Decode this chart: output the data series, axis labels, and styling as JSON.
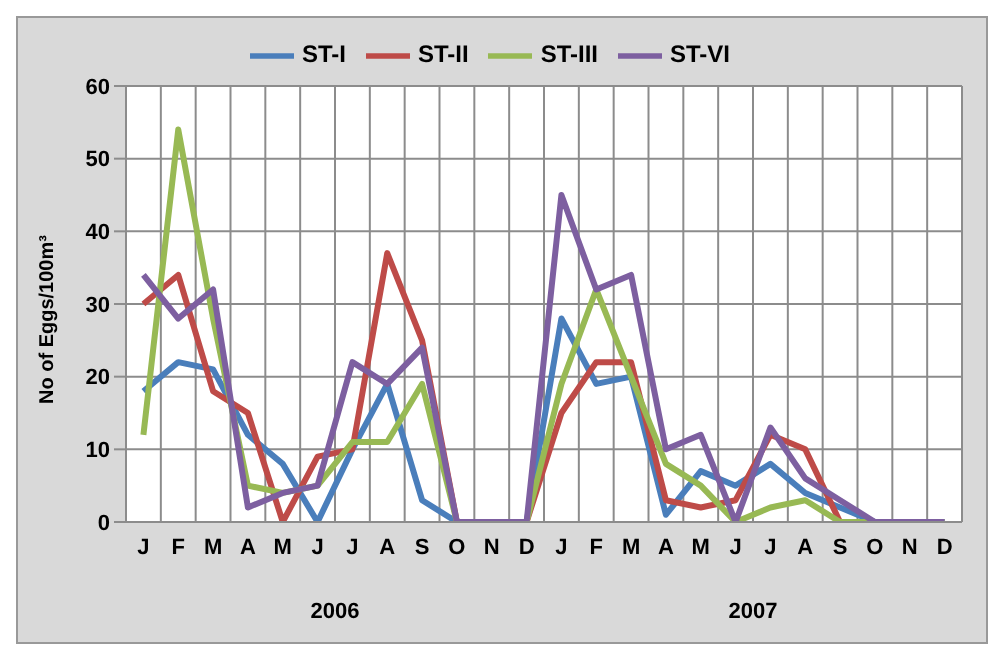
{
  "chart_data": {
    "type": "line",
    "ylabel": "No of Eggs/100m³",
    "categories": [
      "J",
      "F",
      "M",
      "A",
      "M",
      "J",
      "J",
      "A",
      "S",
      "O",
      "N",
      "D",
      "J",
      "F",
      "M",
      "A",
      "M",
      "J",
      "J",
      "A",
      "S",
      "O",
      "N",
      "D"
    ],
    "annotations": [
      "2006",
      "2007"
    ],
    "series": [
      {
        "name": "ST-I",
        "color": "#4a7ebb",
        "values": [
          18,
          22,
          21,
          12,
          8,
          0,
          10,
          19,
          3,
          0,
          0,
          0,
          28,
          19,
          20,
          1,
          7,
          5,
          8,
          4,
          2,
          0,
          0,
          0
        ]
      },
      {
        "name": "ST-II",
        "color": "#be4b48",
        "values": [
          30,
          34,
          18,
          15,
          0,
          9,
          10,
          37,
          25,
          0,
          0,
          0,
          15,
          22,
          22,
          3,
          2,
          3,
          12,
          10,
          0,
          null,
          null,
          null
        ]
      },
      {
        "name": "ST-III",
        "color": "#98b954",
        "values": [
          12,
          54,
          28,
          5,
          4,
          5,
          11,
          11,
          19,
          0,
          0,
          0,
          19,
          32,
          20,
          8,
          5,
          0,
          2,
          3,
          0,
          0,
          0,
          0
        ]
      },
      {
        "name": "ST-VI",
        "color": "#7d5fa0",
        "values": [
          34,
          28,
          32,
          2,
          4,
          5,
          22,
          19,
          24,
          0,
          0,
          0,
          45,
          32,
          34,
          10,
          12,
          0,
          13,
          6,
          3,
          0,
          0,
          0
        ]
      }
    ],
    "ylim": [
      0,
      60
    ],
    "yticks": [
      0,
      10,
      20,
      30,
      40,
      50,
      60
    ],
    "grid": true,
    "legend": "top",
    "marker": "none",
    "line_style": "solid"
  }
}
